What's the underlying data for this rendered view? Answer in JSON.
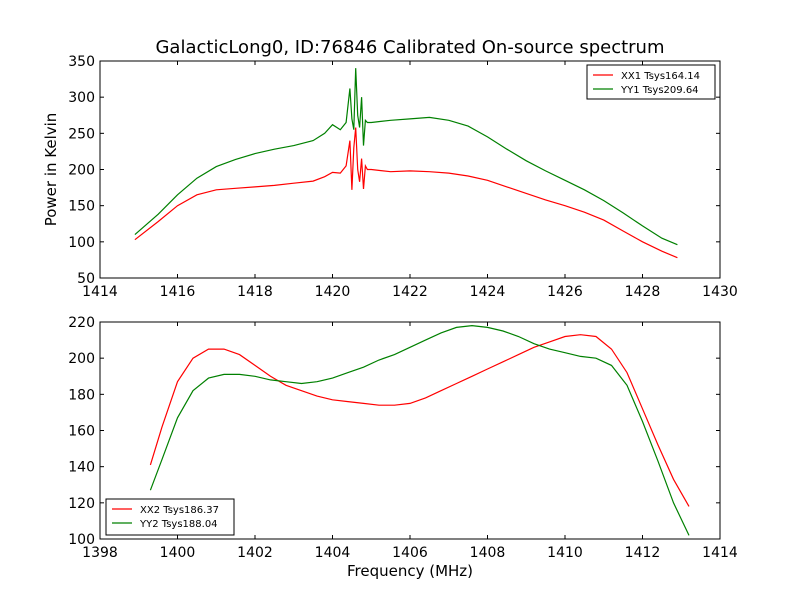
{
  "figure": {
    "title": "GalacticLong0, ID:76846 Calibrated On-source spectrum"
  },
  "chart_data": [
    {
      "type": "line",
      "title": "GalacticLong0, ID:76846 Calibrated On-source spectrum",
      "xlabel": "",
      "ylabel": "Power in Kelvin",
      "xlim": [
        1414,
        1430
      ],
      "ylim": [
        50,
        350
      ],
      "xticks": [
        "1414",
        "1416",
        "1418",
        "1420",
        "1422",
        "1424",
        "1426",
        "1428",
        "1430"
      ],
      "yticks": [
        "50",
        "100",
        "150",
        "200",
        "250",
        "300",
        "350"
      ],
      "grid": false,
      "legend_position": "top-right",
      "series": [
        {
          "name": "XX1 Tsys164.14",
          "color": "#ff0000",
          "x": [
            1414.9,
            1415.5,
            1416.0,
            1416.5,
            1417.0,
            1417.5,
            1418.0,
            1418.5,
            1419.0,
            1419.5,
            1419.8,
            1420.0,
            1420.2,
            1420.35,
            1420.45,
            1420.5,
            1420.55,
            1420.6,
            1420.65,
            1420.7,
            1420.75,
            1420.8,
            1420.85,
            1420.9,
            1421.0,
            1421.5,
            1422.0,
            1422.5,
            1423.0,
            1423.5,
            1424.0,
            1424.5,
            1425.0,
            1425.5,
            1426.0,
            1426.5,
            1427.0,
            1427.5,
            1428.0,
            1428.5,
            1428.9
          ],
          "y": [
            103,
            128,
            150,
            165,
            172,
            174,
            176,
            178,
            181,
            184,
            190,
            196,
            195,
            205,
            240,
            172,
            230,
            258,
            200,
            183,
            215,
            173,
            205,
            200,
            200,
            197,
            198,
            197,
            195,
            191,
            185,
            176,
            167,
            158,
            150,
            141,
            130,
            115,
            100,
            87,
            78
          ]
        },
        {
          "name": "YY1 Tsys209.64",
          "color": "#008000",
          "x": [
            1414.9,
            1415.5,
            1416.0,
            1416.5,
            1417.0,
            1417.5,
            1418.0,
            1418.5,
            1419.0,
            1419.5,
            1419.8,
            1420.0,
            1420.2,
            1420.35,
            1420.45,
            1420.5,
            1420.55,
            1420.6,
            1420.65,
            1420.7,
            1420.75,
            1420.8,
            1420.85,
            1420.9,
            1421.0,
            1421.5,
            1422.0,
            1422.5,
            1423.0,
            1423.5,
            1424.0,
            1424.5,
            1425.0,
            1425.5,
            1426.0,
            1426.5,
            1427.0,
            1427.5,
            1428.0,
            1428.5,
            1428.9
          ],
          "y": [
            110,
            138,
            165,
            188,
            204,
            214,
            222,
            228,
            233,
            240,
            250,
            262,
            255,
            265,
            312,
            270,
            255,
            340,
            275,
            258,
            300,
            233,
            268,
            265,
            265,
            268,
            270,
            272,
            268,
            260,
            245,
            228,
            212,
            198,
            185,
            172,
            157,
            140,
            122,
            105,
            96
          ]
        }
      ]
    },
    {
      "type": "line",
      "title": "",
      "xlabel": "Frequency (MHz)",
      "ylabel": "",
      "xlim": [
        1398,
        1414
      ],
      "ylim": [
        100,
        220
      ],
      "xticks": [
        "1398",
        "1400",
        "1402",
        "1404",
        "1406",
        "1408",
        "1410",
        "1412",
        "1414"
      ],
      "yticks": [
        "100",
        "120",
        "140",
        "160",
        "180",
        "200",
        "220"
      ],
      "grid": false,
      "legend_position": "bottom-left",
      "series": [
        {
          "name": "XX2 Tsys186.37",
          "color": "#ff0000",
          "x": [
            1399.3,
            1399.6,
            1400.0,
            1400.4,
            1400.8,
            1401.2,
            1401.6,
            1402.0,
            1402.4,
            1402.8,
            1403.2,
            1403.6,
            1404.0,
            1404.4,
            1404.8,
            1405.2,
            1405.6,
            1406.0,
            1406.4,
            1406.8,
            1407.2,
            1407.6,
            1408.0,
            1408.4,
            1408.8,
            1409.2,
            1409.6,
            1410.0,
            1410.4,
            1410.8,
            1411.2,
            1411.6,
            1412.0,
            1412.4,
            1412.8,
            1413.2
          ],
          "y": [
            141,
            162,
            187,
            200,
            205,
            205,
            202,
            196,
            190,
            185,
            182,
            179,
            177,
            176,
            175,
            174,
            174,
            175,
            178,
            182,
            186,
            190,
            194,
            198,
            202,
            206,
            209,
            212,
            213,
            212,
            205,
            192,
            172,
            152,
            133,
            118
          ]
        },
        {
          "name": "YY2 Tsys188.04",
          "color": "#008000",
          "x": [
            1399.3,
            1399.6,
            1400.0,
            1400.4,
            1400.8,
            1401.2,
            1401.6,
            1402.0,
            1402.4,
            1402.8,
            1403.2,
            1403.6,
            1404.0,
            1404.4,
            1404.8,
            1405.2,
            1405.6,
            1406.0,
            1406.4,
            1406.8,
            1407.2,
            1407.6,
            1408.0,
            1408.4,
            1408.8,
            1409.2,
            1409.6,
            1410.0,
            1410.4,
            1410.8,
            1411.2,
            1411.6,
            1412.0,
            1412.4,
            1412.8,
            1413.2
          ],
          "y": [
            127,
            144,
            167,
            182,
            189,
            191,
            191,
            190,
            188,
            187,
            186,
            187,
            189,
            192,
            195,
            199,
            202,
            206,
            210,
            214,
            217,
            218,
            217,
            215,
            212,
            208,
            205,
            203,
            201,
            200,
            196,
            185,
            165,
            143,
            120,
            102
          ]
        }
      ]
    }
  ]
}
